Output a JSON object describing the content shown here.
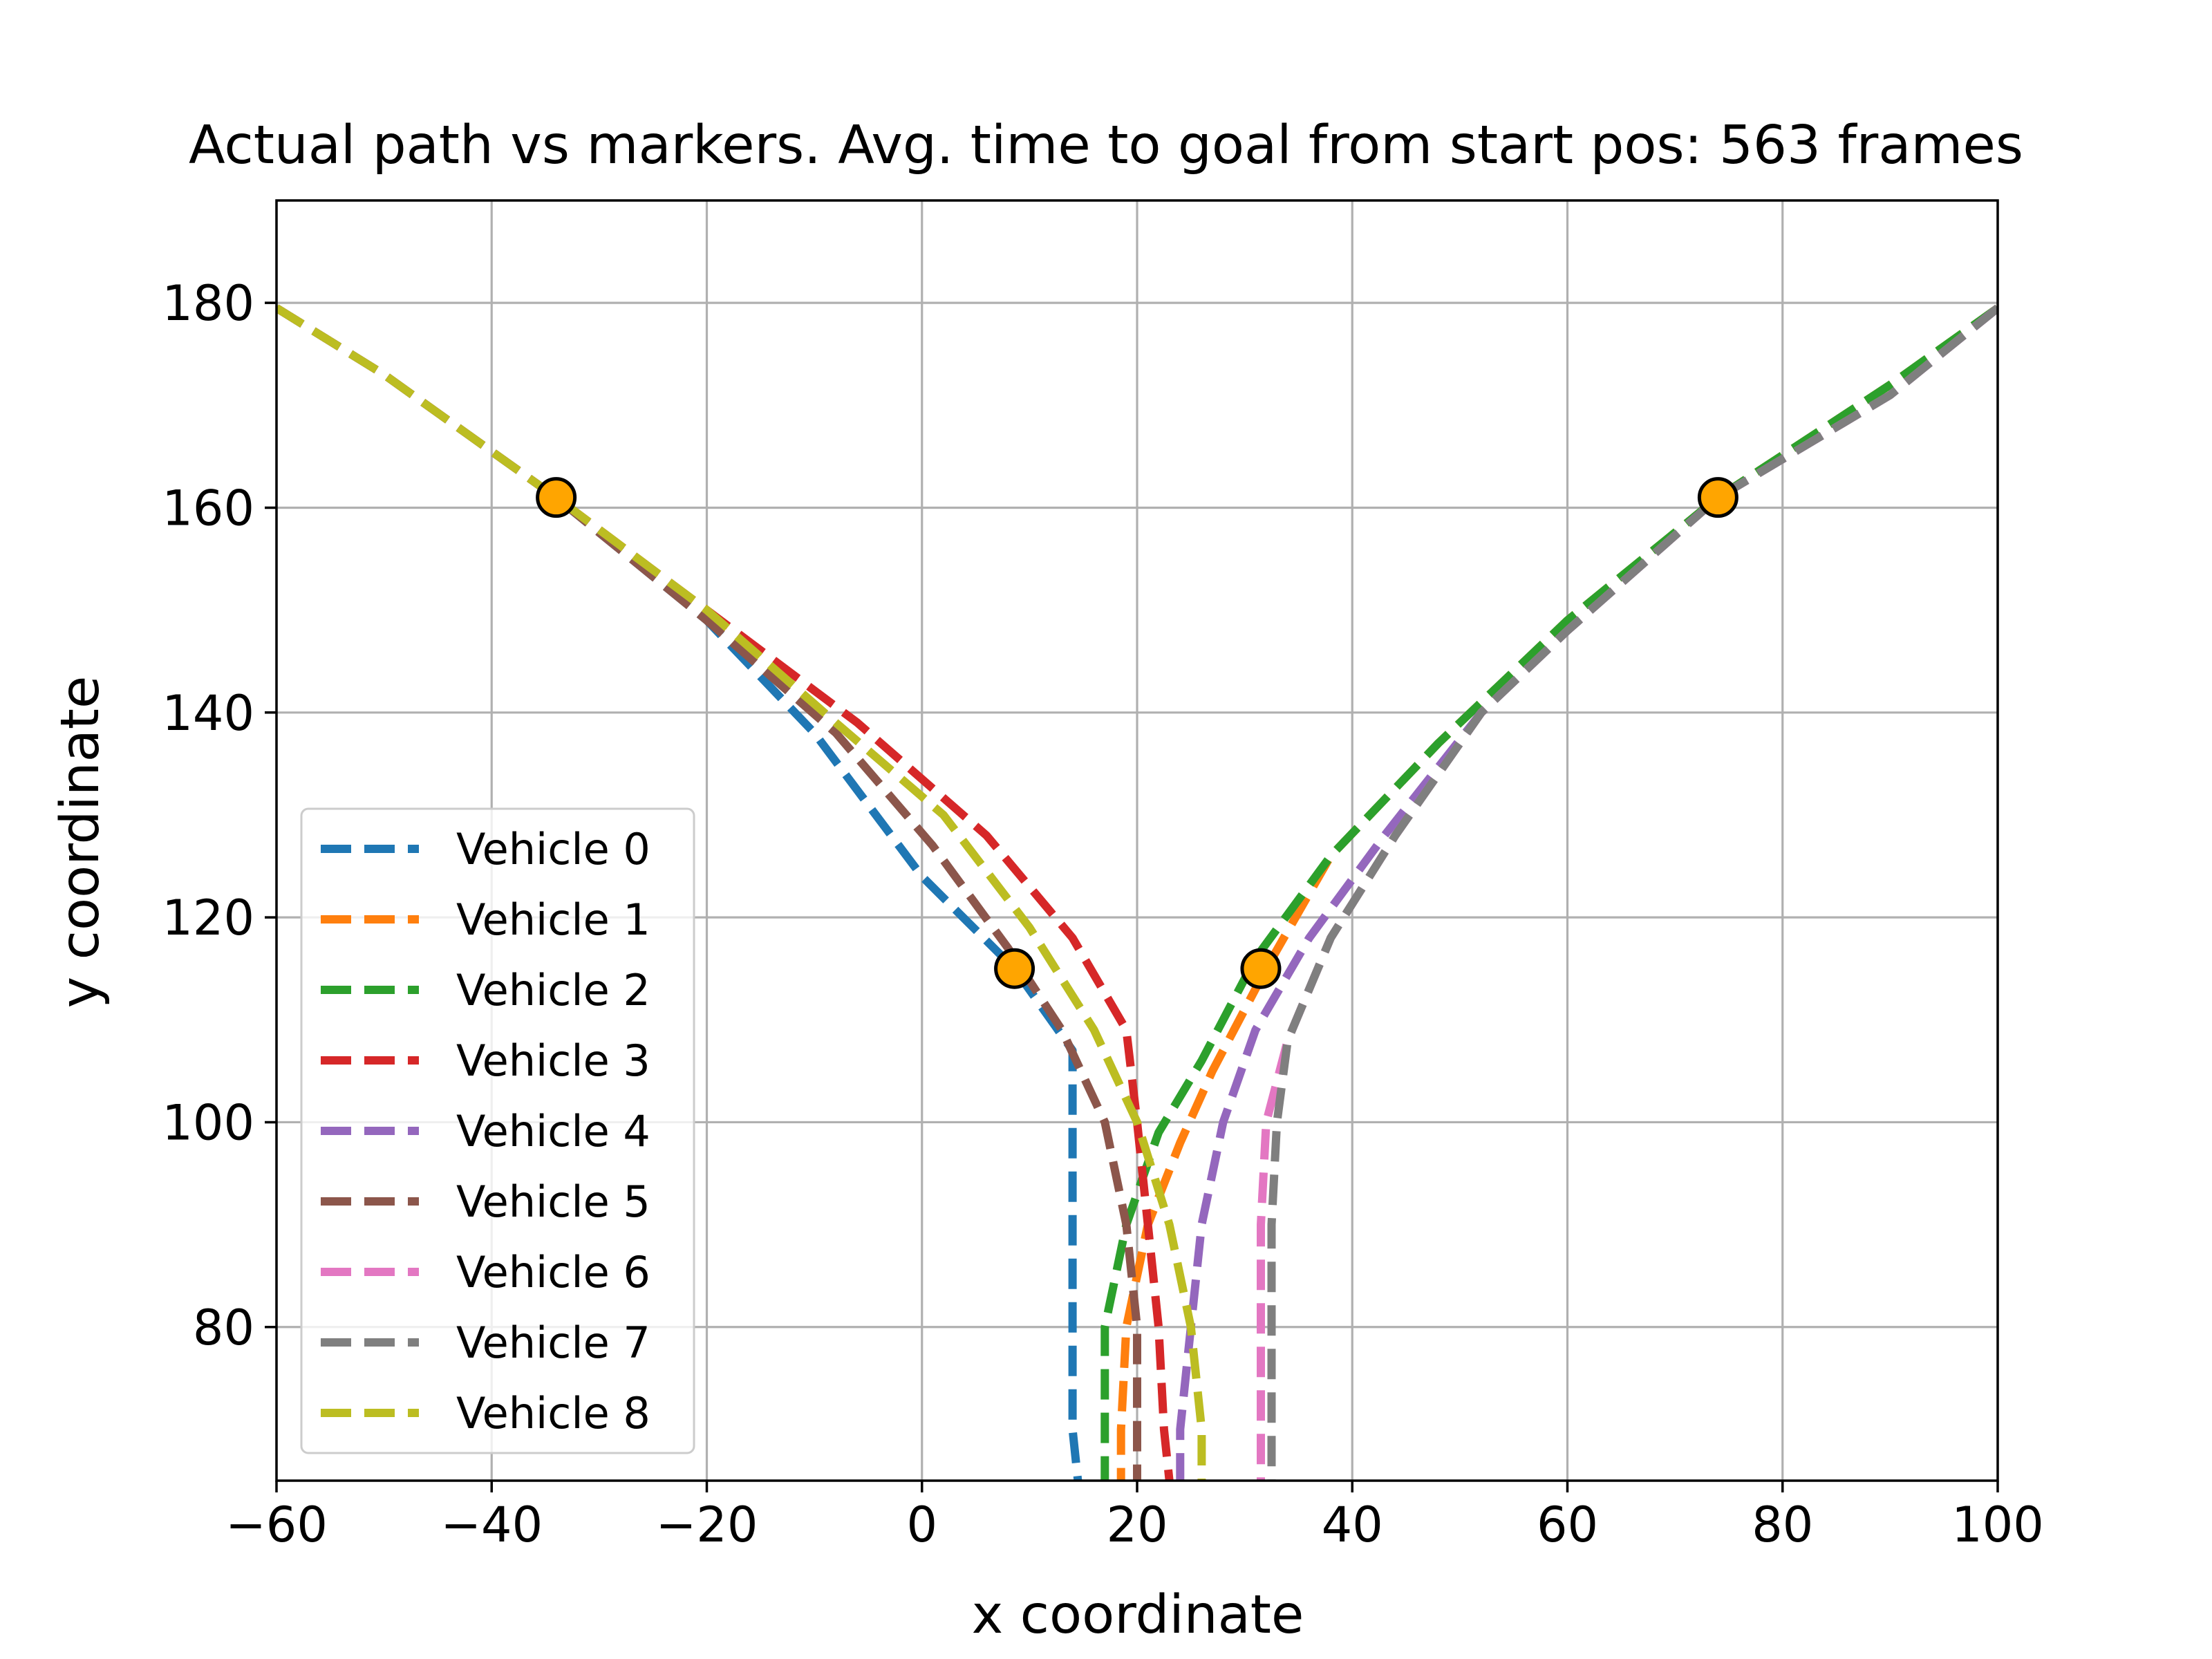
{
  "chart_data": {
    "type": "line",
    "title": "Actual path vs markers. Avg. time to goal from start pos: 563 frames",
    "xlabel": "x coordinate",
    "ylabel": "y coordinate",
    "xlim": [
      -60,
      100
    ],
    "ylim": [
      65,
      190
    ],
    "xticks": [
      -60,
      -40,
      -20,
      0,
      20,
      40,
      60,
      80,
      100
    ],
    "xtick_labels": [
      "−60",
      "−40",
      "−20",
      "0",
      "20",
      "40",
      "60",
      "80",
      "100"
    ],
    "yticks": [
      80,
      100,
      120,
      140,
      160,
      180
    ],
    "ytick_labels": [
      "80",
      "100",
      "120",
      "140",
      "160",
      "180"
    ],
    "grid": true,
    "legend_position": "lower-left",
    "line_style": "dashed",
    "series": [
      {
        "name": "Vehicle 0",
        "color": "#1f77b4",
        "points": [
          [
            -60,
            179.5
          ],
          [
            -50,
            173
          ],
          [
            -34,
            161
          ],
          [
            -20,
            149
          ],
          [
            -10,
            138
          ],
          [
            0,
            124
          ],
          [
            8.6,
            115
          ],
          [
            14,
            107
          ],
          [
            14,
            100
          ],
          [
            14,
            90
          ],
          [
            14,
            80
          ],
          [
            14,
            70
          ],
          [
            14.5,
            65
          ]
        ]
      },
      {
        "name": "Vehicle 1",
        "color": "#ff7f0e",
        "points": [
          [
            100,
            179.5
          ],
          [
            90,
            172
          ],
          [
            74,
            161
          ],
          [
            60,
            149
          ],
          [
            48,
            137
          ],
          [
            38,
            126
          ],
          [
            32,
            115
          ],
          [
            27,
            105
          ],
          [
            24,
            98
          ],
          [
            21,
            90
          ],
          [
            19,
            80
          ],
          [
            18.5,
            70
          ],
          [
            18.5,
            65
          ]
        ]
      },
      {
        "name": "Vehicle 2",
        "color": "#2ca02c",
        "points": [
          [
            100,
            179.5
          ],
          [
            90,
            172
          ],
          [
            74,
            161
          ],
          [
            60,
            149
          ],
          [
            48,
            137
          ],
          [
            38,
            126
          ],
          [
            31,
            116
          ],
          [
            26,
            106
          ],
          [
            22,
            99
          ],
          [
            19,
            90
          ],
          [
            17,
            80
          ],
          [
            17,
            70
          ],
          [
            17,
            65
          ]
        ]
      },
      {
        "name": "Vehicle 3",
        "color": "#d62728",
        "points": [
          [
            -60,
            179.5
          ],
          [
            -50,
            173
          ],
          [
            -34,
            161
          ],
          [
            -20,
            150
          ],
          [
            -6,
            139
          ],
          [
            6,
            128
          ],
          [
            14,
            118
          ],
          [
            19,
            109
          ],
          [
            20,
            100
          ],
          [
            21,
            90
          ],
          [
            22,
            80
          ],
          [
            22.5,
            70
          ],
          [
            23,
            65
          ]
        ]
      },
      {
        "name": "Vehicle 4",
        "color": "#9467bd",
        "points": [
          [
            100,
            179.5
          ],
          [
            90,
            171
          ],
          [
            74,
            161
          ],
          [
            60,
            148
          ],
          [
            52,
            140
          ],
          [
            43,
            128
          ],
          [
            36,
            118
          ],
          [
            31,
            109
          ],
          [
            28,
            100
          ],
          [
            26,
            90
          ],
          [
            25,
            80
          ],
          [
            24,
            70
          ],
          [
            24,
            65
          ]
        ]
      },
      {
        "name": "Vehicle 5",
        "color": "#8c564b",
        "points": [
          [
            -60,
            179.5
          ],
          [
            -50,
            173
          ],
          [
            -34,
            161
          ],
          [
            -20,
            149
          ],
          [
            -8,
            138
          ],
          [
            1,
            127
          ],
          [
            8,
            117
          ],
          [
            13,
            109
          ],
          [
            17,
            100
          ],
          [
            19,
            90
          ],
          [
            20,
            80
          ],
          [
            20,
            70
          ],
          [
            20,
            65
          ]
        ]
      },
      {
        "name": "Vehicle 6",
        "color": "#e377c2",
        "points": [
          [
            100,
            179.5
          ],
          [
            90,
            171
          ],
          [
            74,
            161
          ],
          [
            60,
            148
          ],
          [
            52,
            140
          ],
          [
            44,
            128
          ],
          [
            38,
            118
          ],
          [
            34,
            108
          ],
          [
            32,
            100
          ],
          [
            31.5,
            90
          ],
          [
            31.5,
            80
          ],
          [
            31.5,
            70
          ],
          [
            31.5,
            65
          ]
        ]
      },
      {
        "name": "Vehicle 7",
        "color": "#7f7f7f",
        "points": [
          [
            100,
            179.5
          ],
          [
            90,
            171
          ],
          [
            74,
            161
          ],
          [
            60,
            148
          ],
          [
            52,
            140
          ],
          [
            44,
            128
          ],
          [
            38,
            118
          ],
          [
            34,
            108
          ],
          [
            33,
            100
          ],
          [
            32.5,
            90
          ],
          [
            32.5,
            80
          ],
          [
            32.5,
            70
          ],
          [
            32.5,
            65
          ]
        ]
      },
      {
        "name": "Vehicle 8",
        "color": "#bcbd22",
        "points": [
          [
            -60,
            179.5
          ],
          [
            -50,
            173
          ],
          [
            -34,
            161
          ],
          [
            -20,
            150
          ],
          [
            -8,
            139
          ],
          [
            2,
            130
          ],
          [
            10,
            119
          ],
          [
            16,
            109
          ],
          [
            20,
            100
          ],
          [
            23,
            90
          ],
          [
            25,
            80
          ],
          [
            26,
            70
          ],
          [
            26,
            65
          ]
        ]
      }
    ],
    "markers": {
      "color": "#ffa500",
      "edge_color": "#000000",
      "points": [
        [
          -34,
          161
        ],
        [
          74,
          161
        ],
        [
          8.6,
          115
        ],
        [
          31.5,
          115
        ]
      ]
    }
  }
}
